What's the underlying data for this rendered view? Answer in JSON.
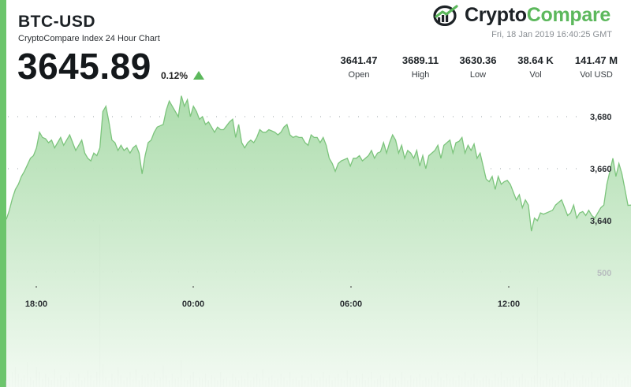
{
  "header": {
    "pair": "BTC-USD",
    "subtitle": "CryptoCompare Index 24 Hour Chart",
    "price": "3645.89",
    "change_pct": "0.12%",
    "change_direction": "up",
    "timestamp": "Fri, 18 Jan 2019 16:40:25 GMT"
  },
  "logo": {
    "part1": "Crypto",
    "part2": "Compare",
    "icon": "chart-line-icon"
  },
  "stats": [
    {
      "value": "3641.47",
      "label": "Open"
    },
    {
      "value": "3689.11",
      "label": "High"
    },
    {
      "value": "3630.36",
      "label": "Low"
    },
    {
      "value": "38.64 K",
      "label": "Vol"
    },
    {
      "value": "141.47 M",
      "label": "Vol USD"
    }
  ],
  "colors": {
    "accent": "#5cb85c",
    "line": "#7cc47c",
    "area_top": "#a9dba9",
    "area_bottom": "#eef8ee",
    "volume": "#b0b3b6"
  },
  "chart_data": {
    "type": "area",
    "title": "",
    "xlabel": "",
    "ylabel": "",
    "x_tick_labels": [
      "18:00",
      "00:00",
      "06:00",
      "12:00"
    ],
    "y_tick_labels": [
      "3,680",
      "3,660",
      "3,640"
    ],
    "y_ticks": [
      3680,
      3660,
      3640
    ],
    "volume_tick_label": "500",
    "ylim": [
      3630,
      3690
    ],
    "grid": true,
    "grid_style": "dotted",
    "series": [
      {
        "values": [
          3640.5,
          3644.0,
          3648.5,
          3652.0,
          3654.0,
          3657.0,
          3659.0,
          3661.5,
          3664.0,
          3665.0,
          3668.0,
          3674.0,
          3672.0,
          3671.5,
          3670.0,
          3671.0,
          3668.0,
          3670.0,
          3672.0,
          3669.0,
          3671.0,
          3673.0,
          3670.0,
          3667.0,
          3669.0,
          3671.0,
          3666.0,
          3664.0,
          3663.0,
          3666.0,
          3665.0,
          3668.0,
          3682.0,
          3684.0,
          3678.0,
          3671.0,
          3670.0,
          3667.0,
          3669.0,
          3667.0,
          3668.0,
          3666.0,
          3668.0,
          3669.0,
          3666.0,
          3658.0,
          3665.0,
          3670.0,
          3671.0,
          3674.0,
          3676.0,
          3676.5,
          3677.0,
          3682.5,
          3686.0,
          3684.0,
          3682.0,
          3680.0,
          3688.0,
          3684.0,
          3686.5,
          3680.0,
          3684.0,
          3682.0,
          3679.0,
          3680.0,
          3677.0,
          3678.0,
          3676.0,
          3674.0,
          3676.0,
          3675.0,
          3675.0,
          3676.5,
          3678.0,
          3679.0,
          3672.0,
          3677.0,
          3670.0,
          3668.0,
          3670.0,
          3671.0,
          3670.0,
          3672.0,
          3675.0,
          3674.0,
          3674.0,
          3675.0,
          3674.5,
          3674.0,
          3673.0,
          3674.0,
          3676.0,
          3677.0,
          3673.0,
          3672.0,
          3672.5,
          3672.0,
          3672.0,
          3670.0,
          3669.0,
          3673.0,
          3672.0,
          3672.0,
          3670.0,
          3672.0,
          3669.0,
          3664.0,
          3662.0,
          3659.0,
          3662.0,
          3663.0,
          3663.5,
          3664.0,
          3661.0,
          3664.0,
          3664.0,
          3665.0,
          3663.0,
          3664.0,
          3665.0,
          3667.0,
          3664.0,
          3666.0,
          3666.5,
          3670.0,
          3666.0,
          3670.0,
          3673.0,
          3671.0,
          3666.0,
          3669.0,
          3664.0,
          3667.0,
          3666.0,
          3664.0,
          3667.0,
          3661.0,
          3665.0,
          3660.0,
          3665.0,
          3666.0,
          3667.0,
          3669.0,
          3664.0,
          3669.0,
          3670.0,
          3671.0,
          3666.0,
          3670.0,
          3670.5,
          3672.0,
          3666.0,
          3669.0,
          3667.0,
          3669.5,
          3664.0,
          3666.0,
          3661.0,
          3656.0,
          3655.0,
          3657.0,
          3652.0,
          3657.0,
          3654.0,
          3655.0,
          3655.5,
          3654.0,
          3651.0,
          3648.0,
          3650.0,
          3645.0,
          3648.0,
          3646.0,
          3636.0,
          3641.0,
          3640.0,
          3643.0,
          3642.5,
          3643.0,
          3643.5,
          3644.0,
          3646.0,
          3647.0,
          3648.0,
          3645.0,
          3642.0,
          3643.0,
          3646.0,
          3641.0,
          3643.0,
          3643.5,
          3642.0,
          3644.0,
          3642.0,
          3641.0,
          3643.0,
          3645.0,
          3646.0,
          3654.0,
          3659.0,
          3664.0,
          3657.0,
          3662.0,
          3658.0,
          3652.0,
          3645.89,
          3646.0
        ]
      }
    ],
    "volume": {
      "ylim": [
        0,
        1000
      ],
      "values": [
        40,
        60,
        90,
        120,
        80,
        50,
        70,
        150,
        60,
        40,
        120,
        90,
        50,
        80,
        60,
        40,
        110,
        50,
        70,
        40,
        60,
        90,
        30,
        50,
        80,
        40,
        60,
        100,
        70,
        40,
        90,
        990,
        140,
        60,
        40,
        80,
        50,
        120,
        70,
        40,
        60,
        90,
        50,
        110,
        40,
        70,
        60,
        80,
        50,
        90,
        40,
        60,
        130,
        70,
        40,
        80,
        50,
        60,
        160,
        50,
        40,
        70,
        90,
        40,
        60,
        50,
        80,
        40,
        70,
        60,
        40,
        90,
        50,
        60,
        40,
        80,
        60,
        40,
        70,
        50,
        90,
        40,
        60,
        80,
        50,
        110,
        40,
        60,
        70,
        40,
        50,
        80,
        60,
        40,
        90,
        50,
        60,
        40,
        70,
        40,
        60,
        80,
        50,
        40,
        60,
        90,
        50,
        70,
        40,
        60,
        80,
        50,
        40,
        100,
        60,
        40,
        70,
        50,
        80,
        40,
        60,
        90,
        40,
        50,
        70,
        60,
        40,
        80,
        50,
        60,
        40,
        90,
        60,
        40,
        70,
        50,
        60,
        80,
        40,
        60,
        50,
        70,
        40,
        90,
        60,
        40,
        80,
        50,
        60,
        40,
        70,
        60,
        90,
        40,
        60,
        80,
        50,
        40,
        60,
        70,
        50,
        40,
        80,
        60,
        90,
        40,
        60,
        50,
        70,
        40,
        60,
        80,
        50,
        40,
        60,
        70,
        600,
        60,
        40,
        80,
        50,
        60,
        40,
        70,
        60,
        90,
        40,
        50,
        80,
        60,
        40,
        70,
        50,
        60,
        90,
        40,
        60,
        80,
        50,
        70,
        40,
        60,
        50,
        80,
        40,
        60,
        70,
        50
      ]
    }
  }
}
